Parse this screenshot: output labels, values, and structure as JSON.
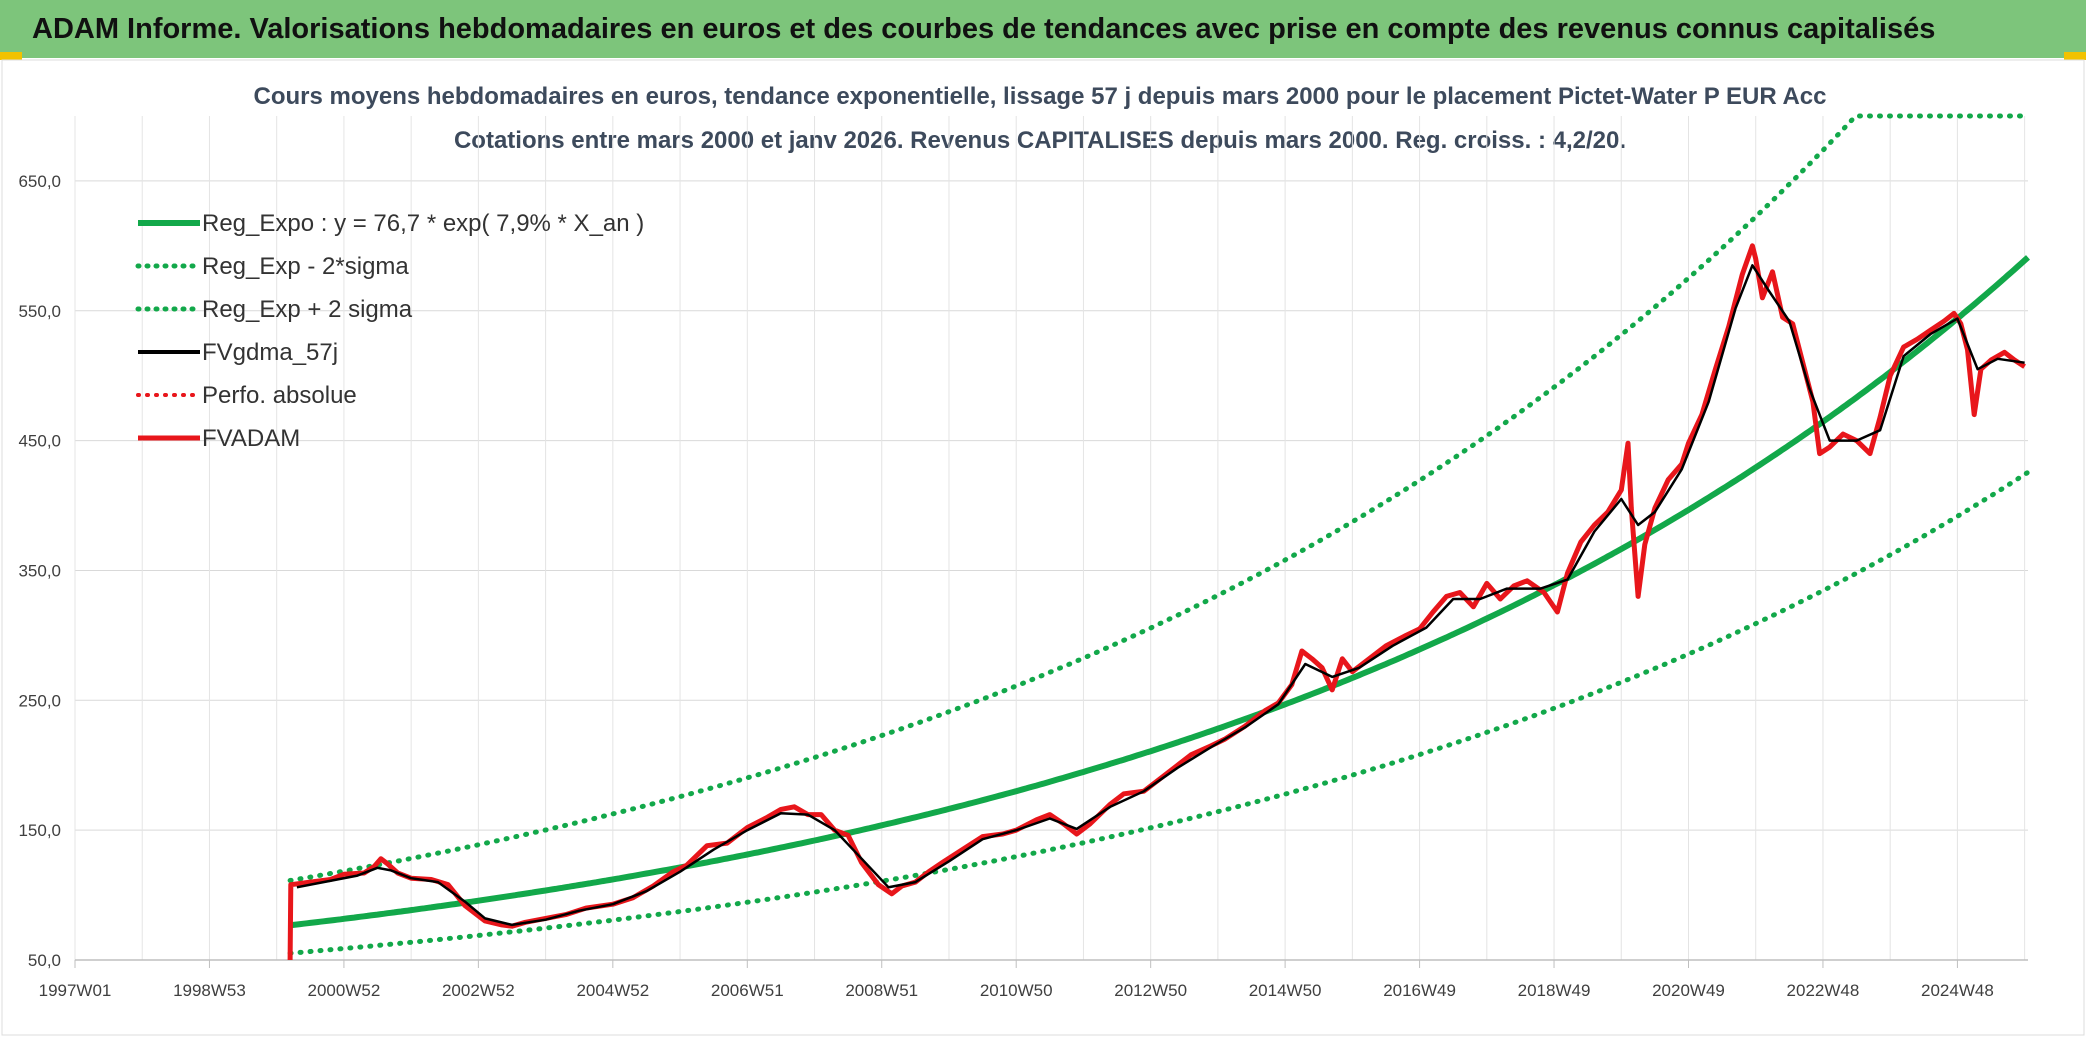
{
  "header": {
    "title": "ADAM Informe. Valorisations hebdomadaires en euros et des courbes de tendances avec prise en compte des revenus connus capitalisés"
  },
  "chart_data": {
    "type": "line",
    "title": "Cours moyens hebdomadaires en euros, tendance exponentielle, lissage 57 j depuis mars 2000 pour le placement Pictet-Water P EUR Acc",
    "subtitle": "Cotations entre mars 2000 et janv 2026. Revenus CAPITALISES depuis mars 2000. Reg. croiss. : 4,2/20.",
    "xlabel": "",
    "ylabel": "",
    "x_range": [
      1997.0,
      2026.05
    ],
    "ylim": [
      50,
      700
    ],
    "y_ticks": [
      "50,0",
      "150,0",
      "250,0",
      "350,0",
      "450,0",
      "550,0",
      "650,0"
    ],
    "y_tick_values": [
      50,
      150,
      250,
      350,
      450,
      550,
      650
    ],
    "x_ticks": [
      "1997W01",
      "1998W53",
      "2000W52",
      "2002W52",
      "2004W52",
      "2006W51",
      "2008W51",
      "2010W50",
      "2012W50",
      "2014W50",
      "2016W49",
      "2018W49",
      "2020W49",
      "2022W48",
      "2024W48"
    ],
    "x_tick_years": [
      1997.0,
      1999.0,
      2001.0,
      2003.0,
      2005.0,
      2007.0,
      2009.0,
      2011.0,
      2013.0,
      2015.0,
      2017.0,
      2019.0,
      2021.0,
      2023.0,
      2025.0
    ],
    "grid": true,
    "legend_position": "top-left",
    "regression": {
      "a": 76.7,
      "rate": 0.079,
      "t0": 2000.2,
      "sigma_factor_low": 0.72,
      "sigma_factor_high": 1.45,
      "cap": 700
    },
    "series": [
      {
        "name": "Reg_Expo : y = 76,7 * exp( 7,9% *  X_an )",
        "color": "#12a84a",
        "style": "solid",
        "width": 6
      },
      {
        "name": "Reg_Exp - 2*sigma",
        "color": "#12a84a",
        "style": "dotted",
        "width": 5
      },
      {
        "name": "Reg_Exp + 2 sigma",
        "color": "#12a84a",
        "style": "dotted",
        "width": 5
      },
      {
        "name": "FVgdma_57j",
        "color": "#000000",
        "style": "solid",
        "width": 4
      },
      {
        "name": "Perfo. absolue",
        "color": "#e8161b",
        "style": "dotted",
        "width": 4
      },
      {
        "name": "FVADAM",
        "color": "#e8161b",
        "style": "solid",
        "width": 5
      }
    ],
    "fvadam_points": [
      [
        2000.2,
        50
      ],
      [
        2000.21,
        108
      ],
      [
        2000.5,
        110
      ],
      [
        2000.8,
        112
      ],
      [
        2001.0,
        116
      ],
      [
        2001.3,
        117
      ],
      [
        2001.45,
        122
      ],
      [
        2001.55,
        128
      ],
      [
        2001.65,
        124
      ],
      [
        2001.8,
        117
      ],
      [
        2002.0,
        113
      ],
      [
        2002.3,
        112
      ],
      [
        2002.55,
        108
      ],
      [
        2002.8,
        92
      ],
      [
        2003.1,
        80
      ],
      [
        2003.35,
        77
      ],
      [
        2003.5,
        76
      ],
      [
        2003.7,
        79
      ],
      [
        2004.0,
        82
      ],
      [
        2004.3,
        85
      ],
      [
        2004.6,
        90
      ],
      [
        2005.0,
        93
      ],
      [
        2005.3,
        98
      ],
      [
        2005.6,
        107
      ],
      [
        2005.9,
        118
      ],
      [
        2006.1,
        123
      ],
      [
        2006.4,
        138
      ],
      [
        2006.7,
        140
      ],
      [
        2007.0,
        152
      ],
      [
        2007.3,
        160
      ],
      [
        2007.5,
        166
      ],
      [
        2007.7,
        168
      ],
      [
        2007.9,
        162
      ],
      [
        2008.1,
        162
      ],
      [
        2008.3,
        150
      ],
      [
        2008.5,
        146
      ],
      [
        2008.7,
        125
      ],
      [
        2008.95,
        108
      ],
      [
        2009.15,
        101
      ],
      [
        2009.3,
        107
      ],
      [
        2009.5,
        110
      ],
      [
        2009.7,
        118
      ],
      [
        2009.9,
        125
      ],
      [
        2010.2,
        135
      ],
      [
        2010.5,
        145
      ],
      [
        2010.8,
        147
      ],
      [
        2011.0,
        150
      ],
      [
        2011.3,
        158
      ],
      [
        2011.5,
        162
      ],
      [
        2011.7,
        155
      ],
      [
        2011.9,
        147
      ],
      [
        2012.1,
        155
      ],
      [
        2012.4,
        170
      ],
      [
        2012.6,
        178
      ],
      [
        2012.9,
        180
      ],
      [
        2013.1,
        188
      ],
      [
        2013.4,
        200
      ],
      [
        2013.6,
        208
      ],
      [
        2013.9,
        215
      ],
      [
        2014.1,
        220
      ],
      [
        2014.4,
        230
      ],
      [
        2014.7,
        242
      ],
      [
        2014.9,
        248
      ],
      [
        2015.1,
        262
      ],
      [
        2015.25,
        288
      ],
      [
        2015.4,
        282
      ],
      [
        2015.55,
        275
      ],
      [
        2015.7,
        258
      ],
      [
        2015.85,
        282
      ],
      [
        2016.0,
        272
      ],
      [
        2016.2,
        280
      ],
      [
        2016.5,
        292
      ],
      [
        2016.8,
        300
      ],
      [
        2017.0,
        305
      ],
      [
        2017.2,
        318
      ],
      [
        2017.4,
        330
      ],
      [
        2017.6,
        333
      ],
      [
        2017.8,
        322
      ],
      [
        2018.0,
        340
      ],
      [
        2018.2,
        328
      ],
      [
        2018.4,
        338
      ],
      [
        2018.6,
        342
      ],
      [
        2018.85,
        333
      ],
      [
        2019.05,
        318
      ],
      [
        2019.2,
        348
      ],
      [
        2019.4,
        372
      ],
      [
        2019.6,
        385
      ],
      [
        2019.8,
        395
      ],
      [
        2020.0,
        412
      ],
      [
        2020.1,
        448
      ],
      [
        2020.15,
        398
      ],
      [
        2020.25,
        330
      ],
      [
        2020.35,
        370
      ],
      [
        2020.5,
        398
      ],
      [
        2020.7,
        420
      ],
      [
        2020.9,
        432
      ],
      [
        2021.0,
        448
      ],
      [
        2021.2,
        470
      ],
      [
        2021.4,
        505
      ],
      [
        2021.6,
        538
      ],
      [
        2021.8,
        578
      ],
      [
        2021.95,
        600
      ],
      [
        2022.0,
        590
      ],
      [
        2022.1,
        560
      ],
      [
        2022.25,
        580
      ],
      [
        2022.4,
        545
      ],
      [
        2022.55,
        540
      ],
      [
        2022.7,
        510
      ],
      [
        2022.85,
        480
      ],
      [
        2022.95,
        440
      ],
      [
        2023.1,
        445
      ],
      [
        2023.3,
        455
      ],
      [
        2023.5,
        450
      ],
      [
        2023.7,
        440
      ],
      [
        2023.85,
        468
      ],
      [
        2024.0,
        500
      ],
      [
        2024.2,
        522
      ],
      [
        2024.4,
        528
      ],
      [
        2024.6,
        535
      ],
      [
        2024.8,
        542
      ],
      [
        2024.95,
        548
      ],
      [
        2025.05,
        540
      ],
      [
        2025.15,
        520
      ],
      [
        2025.25,
        470
      ],
      [
        2025.35,
        505
      ],
      [
        2025.5,
        512
      ],
      [
        2025.7,
        518
      ],
      [
        2025.85,
        512
      ],
      [
        2026.0,
        507
      ]
    ],
    "fvgdma_points": [
      [
        2000.3,
        106
      ],
      [
        2000.6,
        109
      ],
      [
        2000.9,
        112
      ],
      [
        2001.2,
        115
      ],
      [
        2001.5,
        121
      ],
      [
        2001.7,
        119
      ],
      [
        2002.0,
        113
      ],
      [
        2002.4,
        110
      ],
      [
        2002.8,
        95
      ],
      [
        2003.1,
        82
      ],
      [
        2003.5,
        77
      ],
      [
        2004.0,
        81
      ],
      [
        2004.5,
        88
      ],
      [
        2005.0,
        93
      ],
      [
        2005.5,
        103
      ],
      [
        2006.0,
        118
      ],
      [
        2006.5,
        135
      ],
      [
        2007.0,
        150
      ],
      [
        2007.5,
        163
      ],
      [
        2007.9,
        162
      ],
      [
        2008.3,
        150
      ],
      [
        2008.7,
        128
      ],
      [
        2009.1,
        106
      ],
      [
        2009.5,
        110
      ],
      [
        2010.0,
        126
      ],
      [
        2010.5,
        143
      ],
      [
        2011.0,
        150
      ],
      [
        2011.5,
        159
      ],
      [
        2011.9,
        151
      ],
      [
        2012.4,
        168
      ],
      [
        2012.9,
        180
      ],
      [
        2013.4,
        198
      ],
      [
        2013.9,
        214
      ],
      [
        2014.4,
        229
      ],
      [
        2014.9,
        247
      ],
      [
        2015.3,
        278
      ],
      [
        2015.7,
        268
      ],
      [
        2016.1,
        275
      ],
      [
        2016.6,
        292
      ],
      [
        2017.1,
        306
      ],
      [
        2017.5,
        328
      ],
      [
        2017.9,
        328
      ],
      [
        2018.3,
        336
      ],
      [
        2018.8,
        336
      ],
      [
        2019.2,
        343
      ],
      [
        2019.6,
        380
      ],
      [
        2020.0,
        405
      ],
      [
        2020.25,
        385
      ],
      [
        2020.5,
        395
      ],
      [
        2020.9,
        428
      ],
      [
        2021.3,
        480
      ],
      [
        2021.7,
        552
      ],
      [
        2021.95,
        585
      ],
      [
        2022.2,
        565
      ],
      [
        2022.5,
        542
      ],
      [
        2022.8,
        490
      ],
      [
        2023.1,
        450
      ],
      [
        2023.5,
        450
      ],
      [
        2023.85,
        458
      ],
      [
        2024.2,
        515
      ],
      [
        2024.6,
        532
      ],
      [
        2025.0,
        544
      ],
      [
        2025.3,
        505
      ],
      [
        2025.6,
        513
      ],
      [
        2026.0,
        510
      ]
    ]
  }
}
